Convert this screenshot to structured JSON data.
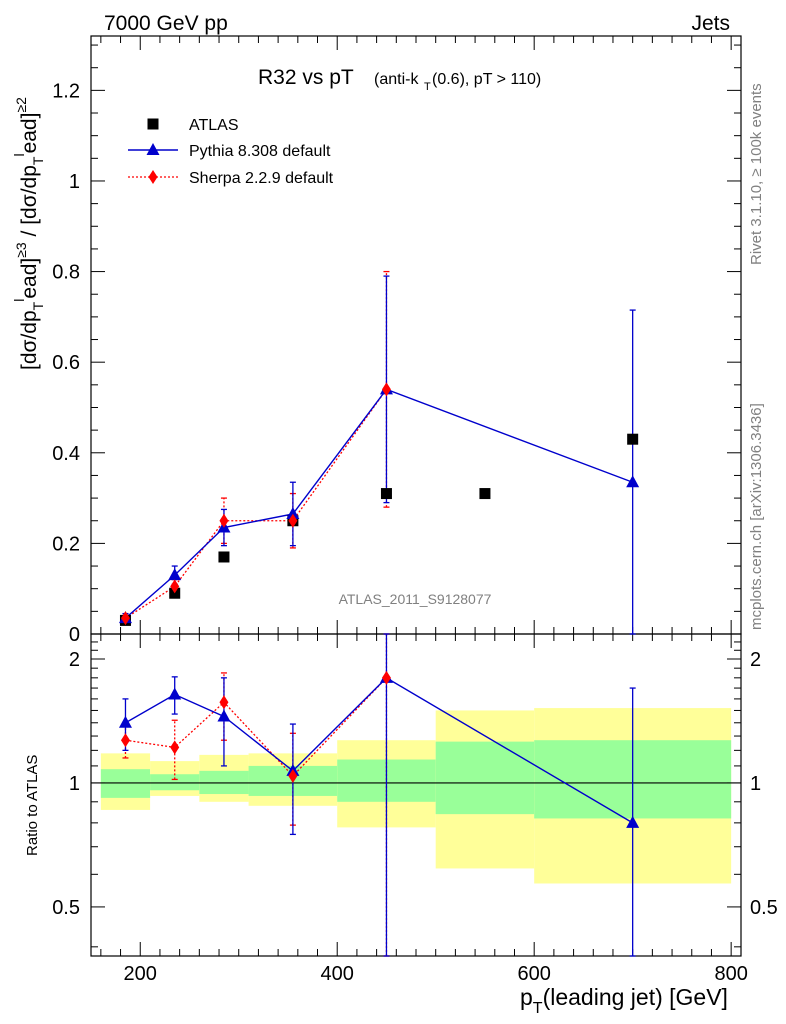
{
  "header": {
    "left": "7000 GeV pp",
    "right": "Jets"
  },
  "side_labels": {
    "rivet": "Rivet 3.1.10, ≥ 100k events",
    "mcplots": "mcplots.cern.ch [arXiv:1306.3436]"
  },
  "chart_data": {
    "type": "scatter",
    "title": "R32 vs pT",
    "title_suffix": "(anti-k",
    "title_sub": "T",
    "title_tail": "(0.6), pT > 110)",
    "ylabel": "[dσ/dp_T^lead]^{≥3} / [dσ/dp_T^lead]^{≥2}",
    "xlabel": "p_T(leading jet) [GeV]",
    "watermark": "ATLAS_2011_S9128077",
    "xlim": [
      150,
      810
    ],
    "main_ylim": [
      0,
      1.32
    ],
    "main_yticks": [
      {
        "v": 0,
        "label": "0"
      },
      {
        "v": 0.2,
        "label": "0.2"
      },
      {
        "v": 0.4,
        "label": "0.4"
      },
      {
        "v": 0.6,
        "label": "0.6"
      },
      {
        "v": 0.8,
        "label": "0.8"
      },
      {
        "v": 1.0,
        "label": "1"
      },
      {
        "v": 1.2,
        "label": "1.2"
      }
    ],
    "xticks": [
      {
        "v": 200,
        "label": "200"
      },
      {
        "v": 400,
        "label": "400"
      },
      {
        "v": 600,
        "label": "600"
      },
      {
        "v": 800,
        "label": "800"
      }
    ],
    "ratio_ylabel": "Ratio to ATLAS",
    "ratio_ylim": [
      0.38,
      2.3
    ],
    "ratio_yticks": [
      {
        "v": 0.5,
        "label": "0.5"
      },
      {
        "v": 1,
        "label": "1"
      },
      {
        "v": 2,
        "label": "2"
      }
    ],
    "legend": [
      {
        "label": "ATLAS",
        "color": "#000000",
        "marker": "square"
      },
      {
        "label": "Pythia 8.308 default",
        "color": "#0000cc",
        "marker": "triangle"
      },
      {
        "label": "Sherpa 2.2.9 default",
        "color": "#ff0000",
        "marker": "diamond"
      }
    ],
    "series": [
      {
        "name": "ATLAS",
        "color": "#000000",
        "x": [
          185,
          235,
          285,
          355,
          450,
          550,
          700
        ],
        "y": [
          0.03,
          0.09,
          0.17,
          0.25,
          0.31,
          0.31,
          0.43
        ]
      },
      {
        "name": "Pythia 8.308 default",
        "color": "#0000cc",
        "x": [
          185,
          235,
          285,
          355,
          450,
          700
        ],
        "y": [
          0.035,
          0.13,
          0.235,
          0.265,
          0.54,
          0.335
        ],
        "err": [
          0.01,
          0.02,
          0.04,
          0.07,
          0.25,
          0.38
        ]
      },
      {
        "name": "Sherpa 2.2.9 default",
        "color": "#ff0000",
        "x": [
          185,
          235,
          285,
          355,
          450
        ],
        "y": [
          0.035,
          0.105,
          0.25,
          0.25,
          0.54
        ],
        "err": [
          0.01,
          0.015,
          0.05,
          0.06,
          0.26
        ]
      }
    ],
    "ratio_series": [
      {
        "name": "Pythia 8.308 default",
        "color": "#0000cc",
        "x": [
          185,
          235,
          285,
          355,
          450,
          700
        ],
        "y": [
          1.4,
          1.64,
          1.45,
          1.07,
          1.8,
          0.8
        ],
        "err_lo": [
          0.2,
          0.17,
          0.35,
          0.32,
          1.5,
          0.8
        ],
        "err_hi": [
          0.2,
          0.17,
          0.35,
          0.32,
          1.0,
          0.9
        ]
      },
      {
        "name": "Sherpa 2.2.9 default",
        "color": "#ff0000",
        "x": [
          185,
          235,
          285,
          355,
          450
        ],
        "y": [
          1.27,
          1.22,
          1.57,
          1.04,
          1.8
        ],
        "err_lo": [
          0.12,
          0.2,
          0.3,
          0.25,
          1.5
        ],
        "err_hi": [
          0.12,
          0.2,
          0.28,
          0.28,
          1.0
        ]
      }
    ],
    "uncertainty_bands": [
      {
        "x0": 160,
        "x1": 210,
        "y_lo": 0.86,
        "y_hi": 1.18,
        "g_lo": 0.92,
        "g_hi": 1.08
      },
      {
        "x0": 210,
        "x1": 260,
        "y_lo": 0.93,
        "y_hi": 1.13,
        "g_lo": 0.96,
        "g_hi": 1.05
      },
      {
        "x0": 260,
        "x1": 310,
        "y_lo": 0.9,
        "y_hi": 1.17,
        "g_lo": 0.94,
        "g_hi": 1.07
      },
      {
        "x0": 310,
        "x1": 400,
        "y_lo": 0.88,
        "y_hi": 1.18,
        "g_lo": 0.93,
        "g_hi": 1.1
      },
      {
        "x0": 400,
        "x1": 500,
        "y_lo": 0.78,
        "y_hi": 1.27,
        "g_lo": 0.9,
        "g_hi": 1.14
      },
      {
        "x0": 500,
        "x1": 600,
        "y_lo": 0.62,
        "y_hi": 1.5,
        "g_lo": 0.84,
        "g_hi": 1.26
      },
      {
        "x0": 600,
        "x1": 800,
        "y_lo": 0.57,
        "y_hi": 1.52,
        "g_lo": 0.82,
        "g_hi": 1.27
      }
    ],
    "band_colors": {
      "yellow": "#ffff99",
      "green": "#99ff99"
    }
  }
}
